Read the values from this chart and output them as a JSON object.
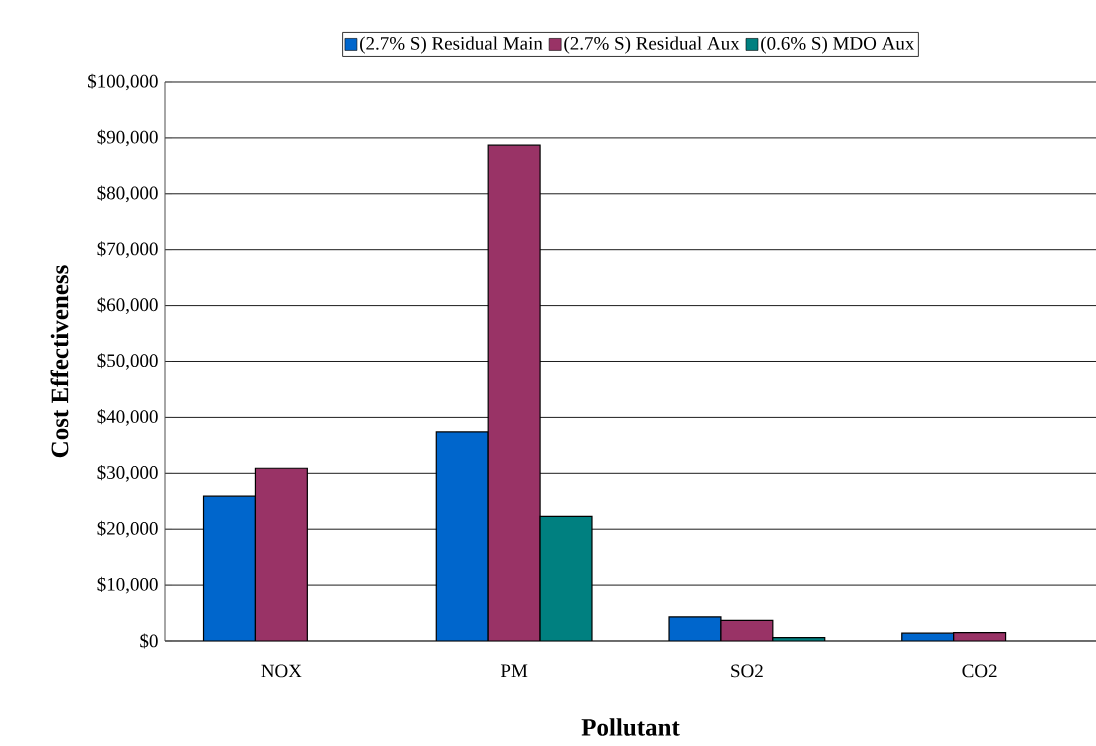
{
  "chart_data": {
    "type": "bar",
    "xlabel": "Pollutant",
    "ylabel": "Cost Effectiveness",
    "categories": [
      "NOX",
      "PM",
      "SO2",
      "CO2"
    ],
    "series": [
      {
        "name": "(2.7% S) Residual Main",
        "color": "#0066cc",
        "values": [
          25900,
          37400,
          4300,
          1400
        ]
      },
      {
        "name": "(2.7% S) Residual Aux",
        "color": "#993366",
        "values": [
          30900,
          88700,
          3700,
          1500
        ]
      },
      {
        "name": "(0.6% S) MDO Aux",
        "color": "#008080",
        "values": [
          null,
          22300,
          600,
          null
        ]
      }
    ],
    "ylim": [
      0,
      100000
    ],
    "yticks": [
      {
        "value": 0,
        "label": "$0"
      },
      {
        "value": 10000,
        "label": "$10,000"
      },
      {
        "value": 20000,
        "label": "$20,000"
      },
      {
        "value": 30000,
        "label": "$30,000"
      },
      {
        "value": 40000,
        "label": "$40,000"
      },
      {
        "value": 50000,
        "label": "$50,000"
      },
      {
        "value": 60000,
        "label": "$60,000"
      },
      {
        "value": 70000,
        "label": "$70,000"
      },
      {
        "value": 80000,
        "label": "$80,000"
      },
      {
        "value": 90000,
        "label": "$90,000"
      },
      {
        "value": 100000,
        "label": "$100,000"
      }
    ],
    "grid": "y",
    "legend": "top"
  }
}
